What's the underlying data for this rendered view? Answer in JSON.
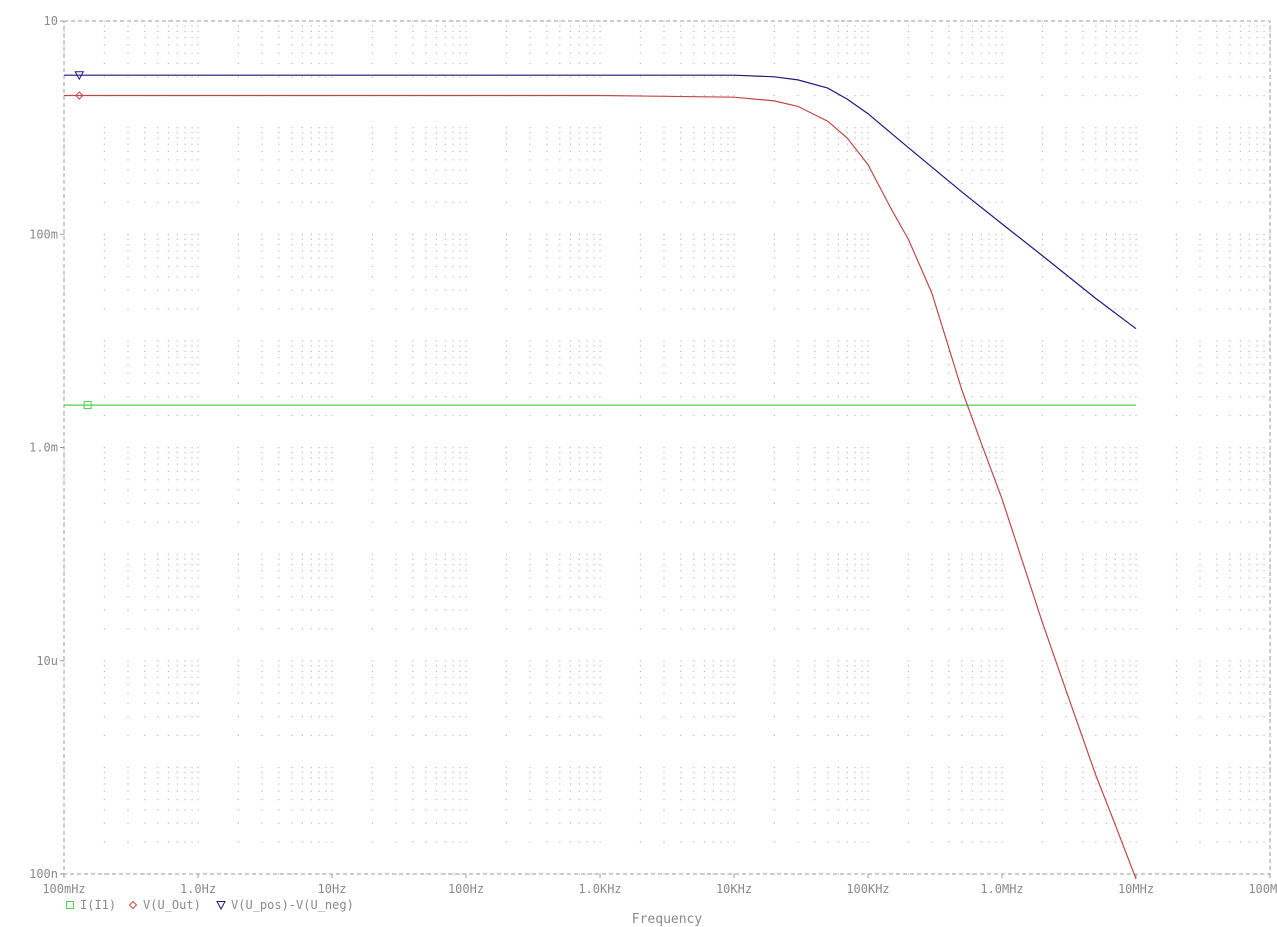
{
  "chart_data": {
    "type": "line",
    "title": "",
    "xlabel": "Frequency",
    "ylabel": "",
    "x_scale": "log",
    "y_scale": "log",
    "xlim": [
      0.1,
      100000000
    ],
    "ylim": [
      1e-07,
      10
    ],
    "grid": true,
    "legend_position": "bottom-left",
    "x_ticks": [
      {
        "value": 0.1,
        "label": "100mHz"
      },
      {
        "value": 1,
        "label": "1.0Hz"
      },
      {
        "value": 10,
        "label": "10Hz"
      },
      {
        "value": 100,
        "label": "100Hz"
      },
      {
        "value": 1000,
        "label": "1.0KHz"
      },
      {
        "value": 10000,
        "label": "10KHz"
      },
      {
        "value": 100000,
        "label": "100KHz"
      },
      {
        "value": 1000000,
        "label": "1.0MHz"
      },
      {
        "value": 10000000,
        "label": "10MHz"
      },
      {
        "value": 100000000,
        "label": "100MHz"
      }
    ],
    "y_ticks": [
      {
        "value": 10,
        "label": "10"
      },
      {
        "value": 0.1,
        "label": "100m"
      },
      {
        "value": 0.001,
        "label": "1.0m"
      },
      {
        "value": 1e-05,
        "label": "10u"
      },
      {
        "value": 1e-07,
        "label": "100n"
      }
    ],
    "series": [
      {
        "name": "I(I1)",
        "color": "#4cd24c",
        "marker": "square",
        "x": [
          0.1,
          1,
          10,
          100,
          1000,
          10000,
          100000,
          1000000,
          10000000
        ],
        "y": [
          0.0025,
          0.0025,
          0.0025,
          0.0025,
          0.0025,
          0.0025,
          0.0025,
          0.0025,
          0.0025
        ]
      },
      {
        "name": "V(U_Out)",
        "color": "#c04848",
        "marker": "diamond",
        "x": [
          0.1,
          1,
          10,
          100,
          1000,
          10000,
          20000,
          30000,
          50000,
          70000,
          100000,
          150000,
          200000,
          300000,
          500000,
          700000,
          1000000,
          2000000,
          3000000,
          5000000,
          7000000,
          10000000
        ],
        "y": [
          2.0,
          2.0,
          2.0,
          2.0,
          2.0,
          1.93,
          1.78,
          1.58,
          1.15,
          0.8,
          0.45,
          0.17,
          0.09,
          0.028,
          0.0035,
          0.0011,
          0.00033,
          2.3e-05,
          5.3e-06,
          8.5e-07,
          2.9e-07,
          9e-08
        ]
      },
      {
        "name": "V(U_pos)-V(U_neg)",
        "color": "#1a1a80",
        "marker": "triangle-down",
        "x": [
          0.1,
          1,
          10,
          100,
          1000,
          10000,
          20000,
          30000,
          50000,
          70000,
          100000,
          200000,
          500000,
          1000000,
          2000000,
          5000000,
          10000000
        ],
        "y": [
          3.1,
          3.1,
          3.1,
          3.1,
          3.1,
          3.1,
          3.0,
          2.8,
          2.35,
          1.85,
          1.35,
          0.65,
          0.25,
          0.125,
          0.063,
          0.025,
          0.013
        ]
      }
    ]
  }
}
